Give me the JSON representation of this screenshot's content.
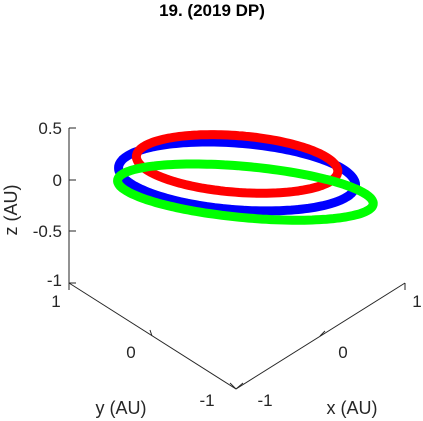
{
  "chart_data": {
    "type": "line",
    "title": "19. (2019 DP)",
    "xlabel": "x (AU)",
    "ylabel": "y (AU)",
    "zlabel": "z (AU)",
    "x_ticks": [
      "-1",
      "0",
      "1"
    ],
    "y_ticks": [
      "-1",
      "0",
      "1"
    ],
    "z_ticks": [
      "-1",
      "-0.5",
      "0",
      "0.5"
    ],
    "xlim": [
      -1,
      1
    ],
    "ylim": [
      -1,
      1
    ],
    "zlim": [
      -1,
      0.5
    ],
    "grid": false,
    "view": "3d",
    "series": [
      {
        "color": "#0000ff",
        "orbit": {
          "center": [
            0.05,
            0.05,
            -0.02
          ],
          "radius": 1.0,
          "normal": [
            0.3,
            0.2,
            0.93
          ]
        }
      },
      {
        "color": "#ff0000",
        "orbit": {
          "center": [
            0.1,
            0.1,
            0.05
          ],
          "radius": 0.85,
          "normal": [
            0.3,
            0.2,
            0.93
          ]
        }
      },
      {
        "color": "#00ff00",
        "orbit": {
          "center": [
            0.05,
            -0.05,
            -0.12
          ],
          "radius": 1.08,
          "normal": [
            0.36,
            0.24,
            0.9
          ]
        }
      }
    ]
  }
}
